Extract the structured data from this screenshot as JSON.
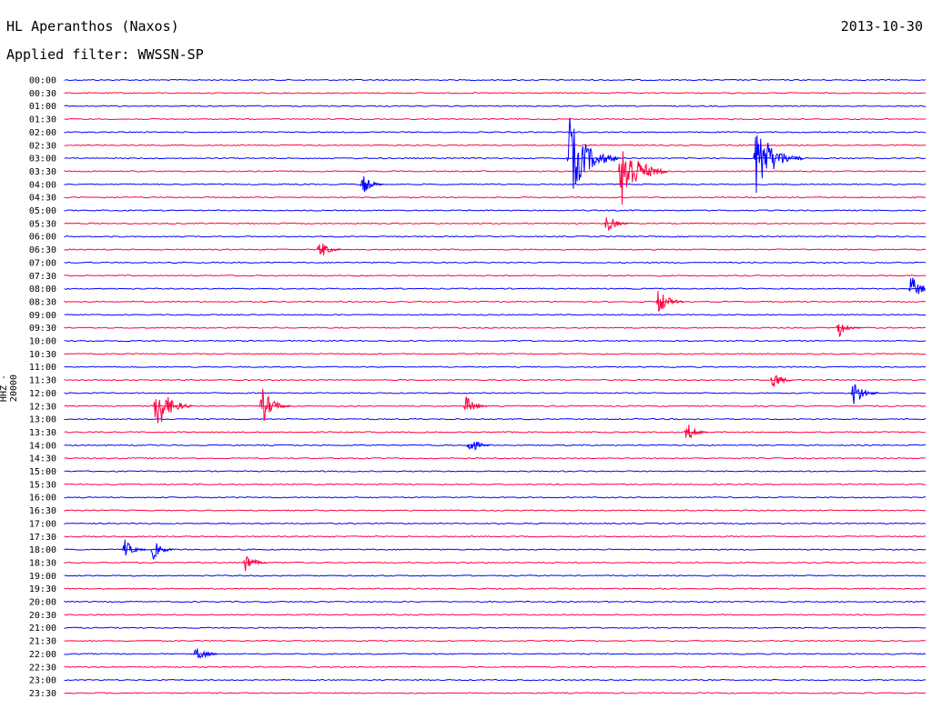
{
  "header": {
    "station": "HL Aperanthos (Naxos)",
    "date": "2013-10-30",
    "filter": "Applied filter: WWSSN-SP",
    "channel": "HHZ - 20000"
  },
  "colors": {
    "blue": "#0000ff",
    "red": "#ff0040"
  },
  "chart_data": {
    "type": "line",
    "title": "HL Aperanthos (Naxos)",
    "subtitle": "Applied filter: WWSSN-SP",
    "ylabel": "HHZ - 20000",
    "xlabel": "",
    "row_labels": [
      "00:00",
      "00:30",
      "01:00",
      "01:30",
      "02:00",
      "02:30",
      "03:00",
      "03:30",
      "04:00",
      "04:30",
      "05:00",
      "05:30",
      "06:00",
      "06:30",
      "07:00",
      "07:30",
      "08:00",
      "08:30",
      "09:00",
      "09:30",
      "10:00",
      "10:30",
      "11:00",
      "11:30",
      "12:00",
      "12:30",
      "13:00",
      "13:30",
      "14:00",
      "14:30",
      "15:00",
      "15:30",
      "16:00",
      "16:30",
      "17:00",
      "17:30",
      "18:00",
      "18:30",
      "19:00",
      "19:30",
      "20:00",
      "20:30",
      "21:00",
      "21:30",
      "22:00",
      "22:30",
      "23:00",
      "23:30"
    ],
    "row_colors": [
      "blue",
      "red"
    ],
    "x_range_minutes": [
      0,
      30
    ],
    "events": [
      {
        "row": "03:00",
        "minute": 17.5,
        "amplitude": 1.0
      },
      {
        "row": "03:30",
        "minute": 19.3,
        "amplitude": 0.9
      },
      {
        "row": "03:00",
        "minute": 24.0,
        "amplitude": 0.9
      },
      {
        "row": "04:00",
        "minute": 10.3,
        "amplitude": 0.2
      },
      {
        "row": "05:30",
        "minute": 18.8,
        "amplitude": 0.2
      },
      {
        "row": "06:30",
        "minute": 8.8,
        "amplitude": 0.2
      },
      {
        "row": "08:00",
        "minute": 29.4,
        "amplitude": 0.3
      },
      {
        "row": "08:30",
        "minute": 20.6,
        "amplitude": 0.3
      },
      {
        "row": "09:30",
        "minute": 26.9,
        "amplitude": 0.2
      },
      {
        "row": "11:30",
        "minute": 24.6,
        "amplitude": 0.2
      },
      {
        "row": "12:00",
        "minute": 27.4,
        "amplitude": 0.3
      },
      {
        "row": "12:30",
        "minute": 3.1,
        "amplitude": 0.6
      },
      {
        "row": "12:30",
        "minute": 6.8,
        "amplitude": 0.4
      },
      {
        "row": "12:30",
        "minute": 13.9,
        "amplitude": 0.2
      },
      {
        "row": "13:30",
        "minute": 21.6,
        "amplitude": 0.2
      },
      {
        "row": "14:00",
        "minute": 14.0,
        "amplitude": 0.2
      },
      {
        "row": "18:00",
        "minute": 2.0,
        "amplitude": 0.2
      },
      {
        "row": "18:00",
        "minute": 3.0,
        "amplitude": 0.2
      },
      {
        "row": "18:30",
        "minute": 6.2,
        "amplitude": 0.2
      },
      {
        "row": "22:00",
        "minute": 4.5,
        "amplitude": 0.2
      }
    ]
  }
}
